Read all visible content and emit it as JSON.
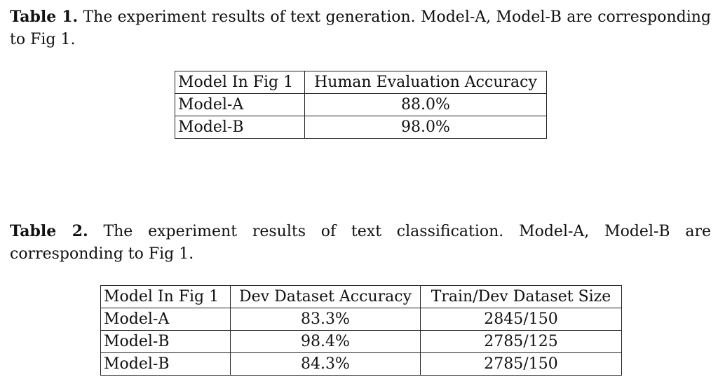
{
  "table1": {
    "caption_label": "Table 1.",
    "caption_text": "The experiment results of text generation. Model-A, Model-B are corresponding to Fig 1.",
    "header": [
      "Model In Fig 1",
      "Human Evaluation Accuracy"
    ],
    "rows": [
      [
        "Model-A",
        "88.0%"
      ],
      [
        "Model-B",
        "98.0%"
      ]
    ]
  },
  "table2": {
    "caption_label": "Table 2.",
    "caption_text": "The experiment results of text classification. Model-A, Model-B are corresponding to Fig 1.",
    "header": [
      "Model In Fig 1",
      "Dev Dataset Accuracy",
      "Train/Dev Dataset Size"
    ],
    "rows": [
      [
        "Model-A",
        "83.3%",
        "2845/150"
      ],
      [
        "Model-B",
        "98.4%",
        "2785/125"
      ],
      [
        "Model-B",
        "84.3%",
        "2785/150"
      ]
    ]
  }
}
